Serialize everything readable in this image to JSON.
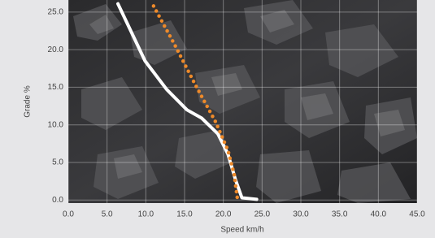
{
  "chart_data": {
    "type": "line",
    "x_label": "Speed km/h",
    "y_label": "Grade %",
    "xlim": [
      0,
      45
    ],
    "ylim": [
      -0.4,
      26.6
    ],
    "xticks": [
      {
        "value": 0,
        "label": "0.0"
      },
      {
        "value": 5,
        "label": "5.0"
      },
      {
        "value": 10,
        "label": "10.0"
      },
      {
        "value": 15,
        "label": "15.0"
      },
      {
        "value": 20,
        "label": "20.0"
      },
      {
        "value": 25,
        "label": "25.0"
      },
      {
        "value": 30,
        "label": "30.0"
      },
      {
        "value": 35,
        "label": "35.0"
      },
      {
        "value": 40,
        "label": "40.0"
      },
      {
        "value": 45,
        "label": "45.0"
      }
    ],
    "yticks": [
      {
        "value": 0,
        "label": "0.0"
      },
      {
        "value": 5,
        "label": "5.0"
      },
      {
        "value": 10,
        "label": "10.0"
      },
      {
        "value": 15,
        "label": "15.0"
      },
      {
        "value": 20,
        "label": "20.0"
      },
      {
        "value": 25,
        "label": "25.0"
      }
    ],
    "grid": true,
    "series": [
      {
        "color": "#ffffff",
        "style": "solid",
        "x": [
          6.4,
          9.9,
          12.7,
          15.3,
          17.2,
          19.3,
          20.6,
          21.6,
          22.4,
          24.3
        ],
        "values": [
          26.1,
          18.5,
          14.7,
          12.0,
          10.9,
          8.8,
          6.1,
          2.6,
          0.3,
          0.1
        ]
      },
      {
        "color": "#ee8a2a",
        "style": "dotted",
        "x": [
          11.0,
          13.7,
          16.4,
          19.0,
          20.6,
          21.4,
          21.8
        ],
        "values": [
          25.8,
          20.7,
          15.3,
          10.4,
          6.6,
          3.4,
          0.3
        ]
      }
    ]
  }
}
